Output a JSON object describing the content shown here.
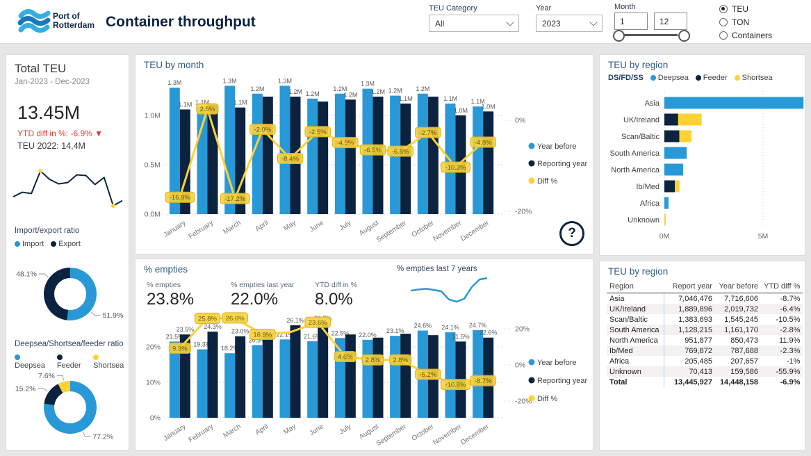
{
  "colors": {
    "blue": "#2899D6",
    "navy": "#0C2340",
    "yellow": "#FFD234",
    "red": "#E23A2E",
    "badge_fill": "#F7D23E",
    "badge_stroke": "#D9B117",
    "badge_text": "#6A5B00"
  },
  "header": {
    "logo_line1": "Port of",
    "logo_line2": "Rotterdam",
    "title": "Container throughput",
    "filters": {
      "teu_category_label": "TEU Category",
      "teu_category_value": "All",
      "year_label": "Year",
      "year_value": "2023",
      "month_label": "Month",
      "month_from": "1",
      "month_to": "12",
      "unit_options": [
        {
          "label": "TEU",
          "selected": true
        },
        {
          "label": "TON",
          "selected": false
        },
        {
          "label": "Containers",
          "selected": false
        }
      ]
    }
  },
  "sidebar": {
    "title": "Total TEU",
    "period": "Jan-2023 - Dec-2023",
    "total_value": "13.45M",
    "ytd_diff_text": "YTD diff in %: -6.9% ▼",
    "prev_year_text": "TEU 2022: 14,4M",
    "sparkline": [
      28,
      35,
      33,
      68,
      55,
      48,
      50,
      62,
      61,
      47,
      58,
      14,
      22
    ],
    "import_export": {
      "title": "Import/export ratio",
      "slices": [
        {
          "label": "Import",
          "pct": 51.9,
          "display": "51.9%",
          "color_key": "blue"
        },
        {
          "label": "Export",
          "pct": 48.1,
          "display": "48.1%",
          "color_key": "navy"
        }
      ]
    },
    "dsf": {
      "title": "Deepsea/Shortsea/feeder ratio",
      "slices": [
        {
          "label": "Deepsea",
          "pct": 77.2,
          "display": "77.2%",
          "color_key": "blue"
        },
        {
          "label": "Feeder",
          "pct": 15.2,
          "display": "15.2%",
          "color_key": "navy"
        },
        {
          "label": "Shortsea",
          "pct": 7.6,
          "display": "7.6%",
          "color_key": "yellow"
        }
      ]
    }
  },
  "help_icon": "?",
  "chart_data": [
    {
      "id": "teu_by_month",
      "type": "bar+line",
      "title": "TEU by month",
      "categories": [
        "January",
        "February",
        "March",
        "April",
        "May",
        "June",
        "July",
        "August",
        "September",
        "October",
        "November",
        "December"
      ],
      "series": [
        {
          "name": "Year before",
          "color_key": "blue",
          "values": [
            1.28,
            1.08,
            1.3,
            1.22,
            1.3,
            1.17,
            1.22,
            1.27,
            1.2,
            1.22,
            1.12,
            1.09
          ],
          "labels": [
            "1.3M",
            "1.1M",
            "1.3M",
            "1.2M",
            "1.3M",
            "1.2M",
            "1.2M",
            "1.3M",
            "1.2M",
            "1.2M",
            "1.1M",
            "1.1M"
          ]
        },
        {
          "name": "Reporting year",
          "color_key": "navy",
          "values": [
            1.06,
            1.11,
            1.08,
            1.19,
            1.19,
            1.14,
            1.16,
            1.19,
            1.12,
            1.19,
            1.0,
            1.04
          ],
          "labels": [
            "1.1M",
            null,
            "1.1M",
            null,
            "1.2M",
            null,
            "1.2M",
            "1.2M",
            "1.1M",
            null,
            "1.0M",
            "1.0M"
          ]
        },
        {
          "name": "Diff %",
          "color_key": "yellow",
          "type": "line",
          "values": [
            -16.9,
            2.5,
            -17.2,
            -2.0,
            -8.4,
            -2.5,
            -4.9,
            -6.5,
            -6.8,
            -2.7,
            -10.3,
            -4.8
          ],
          "labels": [
            "-16.9%",
            "2.5%",
            "-17.2%",
            "-2.0%",
            "-8.4%",
            "-2.5%",
            "-4.9%",
            "-6.5%",
            "-6.8%",
            "-2.7%",
            "-10.3%",
            "-4.8%"
          ]
        }
      ],
      "left_axis": {
        "labels": [
          "0.0M",
          "0.5M",
          "1.0M"
        ],
        "values": [
          0,
          0.5,
          1.0
        ]
      },
      "right_axis": {
        "labels": [
          "0%",
          "-20%"
        ],
        "values": [
          0,
          -20
        ]
      }
    },
    {
      "id": "pct_empties",
      "type": "bar+line",
      "title": "% empties",
      "kpis": [
        {
          "label": "% empties",
          "value": "23.8%"
        },
        {
          "label": "% empties last year",
          "value": "22.0%"
        },
        {
          "label": "YTD diff in %",
          "value": "8.0%"
        }
      ],
      "spark_title": "% empties last 7 years",
      "sparkline": [
        52,
        55,
        57,
        54,
        50,
        28,
        22,
        30,
        62,
        82,
        86
      ],
      "categories": [
        "January",
        "February",
        "March",
        "April",
        "May",
        "June",
        "July",
        "August",
        "September",
        "October",
        "November",
        "December"
      ],
      "series": [
        {
          "name": "Year before",
          "color_key": "blue",
          "values": [
            21.5,
            19.3,
            18.2,
            20.5,
            22.1,
            21.6,
            22.5,
            22.0,
            23.1,
            24.6,
            24.1,
            24.7
          ],
          "labels": [
            "21.5%",
            "19.3%",
            "18.2%",
            "20.5%",
            "22.1%",
            "21.6%",
            "22.5%",
            "22.0%",
            "23.1%",
            "24.6%",
            "24.1%",
            "24.7%"
          ]
        },
        {
          "name": "Reporting year",
          "color_key": "navy",
          "values": [
            23.5,
            24.3,
            23.0,
            24.0,
            26.1,
            26.7,
            23.5,
            22.6,
            23.7,
            23.3,
            21.5,
            22.6
          ],
          "labels": [
            "23.5%",
            "24.3%",
            "23.0%",
            null,
            "26.1%",
            "26.7%",
            null,
            null,
            null,
            null,
            "21.5%",
            "22.6%"
          ]
        },
        {
          "name": "Diff %",
          "color_key": "yellow",
          "type": "line",
          "values": [
            9.3,
            25.8,
            26.0,
            16.9,
            18.1,
            23.6,
            4.6,
            2.8,
            2.8,
            -5.2,
            -10.8,
            -8.7
          ],
          "labels": [
            "9.3%",
            "25.8%",
            "26.0%",
            "16.9%",
            null,
            "23.6%",
            "4.6%",
            "2.8%",
            "2.8%",
            "-5.2%",
            "-10.8%",
            "-8.7%"
          ]
        }
      ],
      "left_axis": {
        "labels": [
          "0%",
          "10%",
          "20%"
        ],
        "values": [
          0,
          10,
          20
        ]
      },
      "right_axis": {
        "labels": [
          "-20%",
          "0%",
          "20%"
        ],
        "values": [
          -20,
          0,
          20
        ]
      }
    },
    {
      "id": "teu_by_region_bar",
      "type": "stacked_bar_h",
      "title": "TEU by region",
      "legend_prefix": "DS/FD/SS",
      "legend": [
        {
          "name": "Deepsea",
          "color_key": "blue"
        },
        {
          "name": "Feeder",
          "color_key": "navy"
        },
        {
          "name": "Shortsea",
          "color_key": "yellow"
        }
      ],
      "categories": [
        "Asia",
        "UK/Ireland",
        "Scan/Baltic",
        "South America",
        "North America",
        "Ib/Med",
        "Africa",
        "Unknown"
      ],
      "segments_m": [
        {
          "deepsea": 7.05,
          "feeder": 0,
          "shortsea": 0
        },
        {
          "deepsea": 0,
          "feeder": 0.7,
          "shortsea": 1.19
        },
        {
          "deepsea": 0,
          "feeder": 0.76,
          "shortsea": 0.62
        },
        {
          "deepsea": 1.13,
          "feeder": 0,
          "shortsea": 0
        },
        {
          "deepsea": 0.95,
          "feeder": 0,
          "shortsea": 0
        },
        {
          "deepsea": 0,
          "feeder": 0.53,
          "shortsea": 0.24
        },
        {
          "deepsea": 0.21,
          "feeder": 0,
          "shortsea": 0
        },
        {
          "deepsea": 0,
          "feeder": 0,
          "shortsea": 0.07
        }
      ],
      "x_axis": {
        "labels": [
          "0M",
          "5M"
        ],
        "values": [
          0,
          5
        ]
      }
    },
    {
      "id": "teu_by_region_table",
      "type": "table",
      "title": "TEU by region",
      "columns": [
        "Region",
        "Report year",
        "Year before",
        "YTD diff %"
      ],
      "rows": [
        [
          "Asia",
          "7,046,476",
          "7,716,606",
          "-8.7%"
        ],
        [
          "UK/Ireland",
          "1,889,896",
          "2,019,732",
          "-6.4%"
        ],
        [
          "Scan/Baltic",
          "1,383,693",
          "1,545,245",
          "-10.5%"
        ],
        [
          "South America",
          "1,128,215",
          "1,161,170",
          "-2.8%"
        ],
        [
          "North America",
          "951,877",
          "850,473",
          "11.9%"
        ],
        [
          "Ib/Med",
          "769,872",
          "787,688",
          "-2.3%"
        ],
        [
          "Africa",
          "205,485",
          "207,657",
          "-1%"
        ],
        [
          "Unknown",
          "70,413",
          "159,586",
          "-55.9%"
        ]
      ],
      "total_row": [
        "Total",
        "13,445,927",
        "14,448,158",
        "-6.9%"
      ]
    }
  ]
}
